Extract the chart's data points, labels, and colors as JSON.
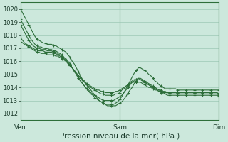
{
  "title": "Pression niveau de la mer( hPa )",
  "bg_color": "#cce8dc",
  "grid_color": "#9cc8b4",
  "line_color": "#2d6e3a",
  "ylim": [
    1011.5,
    1020.5
  ],
  "yticks": [
    1012,
    1013,
    1014,
    1015,
    1016,
    1017,
    1018,
    1019,
    1020
  ],
  "xlim": [
    0,
    96
  ],
  "xtick_positions": [
    0,
    48,
    96
  ],
  "xtick_labels": [
    "Ven",
    "Sam",
    "Dim"
  ],
  "vlines": [
    48,
    96
  ],
  "series": [
    [
      1020.0,
      1019.7,
      1019.4,
      1019.1,
      1018.8,
      1018.5,
      1018.2,
      1017.9,
      1017.7,
      1017.6,
      1017.5,
      1017.4,
      1017.4,
      1017.3,
      1017.3,
      1017.3,
      1017.2,
      1017.2,
      1017.1,
      1017.0,
      1016.9,
      1016.8,
      1016.7,
      1016.5,
      1016.3,
      1016.0,
      1015.8,
      1015.5,
      1015.2,
      1014.9,
      1014.6,
      1014.4,
      1014.2,
      1014.0,
      1013.8,
      1013.6,
      1013.4,
      1013.2,
      1013.0,
      1012.9,
      1012.8,
      1012.7,
      1012.7,
      1012.7,
      1012.7,
      1012.7,
      1012.8,
      1012.9,
      1013.1,
      1013.3,
      1013.6,
      1013.9,
      1014.2,
      1014.5,
      1014.8,
      1015.1,
      1015.3,
      1015.5,
      1015.5,
      1015.4,
      1015.3,
      1015.2,
      1015.0,
      1014.9,
      1014.7,
      1014.5,
      1014.4,
      1014.2,
      1014.1,
      1014.0,
      1013.9,
      1013.9,
      1013.9,
      1013.9,
      1013.9,
      1013.9,
      1013.8,
      1013.8,
      1013.8,
      1013.8,
      1013.8,
      1013.8,
      1013.8,
      1013.8,
      1013.8,
      1013.8,
      1013.8,
      1013.8,
      1013.8,
      1013.8,
      1013.8,
      1013.8,
      1013.8,
      1013.8,
      1013.8,
      1013.8,
      1013.8
    ],
    [
      1019.2,
      1018.9,
      1018.6,
      1018.3,
      1018.0,
      1017.7,
      1017.5,
      1017.3,
      1017.2,
      1017.1,
      1017.1,
      1017.0,
      1017.0,
      1017.0,
      1016.9,
      1016.9,
      1016.8,
      1016.8,
      1016.7,
      1016.6,
      1016.5,
      1016.3,
      1016.2,
      1016.0,
      1015.8,
      1015.5,
      1015.3,
      1015.0,
      1014.7,
      1014.5,
      1014.3,
      1014.1,
      1013.9,
      1013.7,
      1013.5,
      1013.4,
      1013.2,
      1013.1,
      1013.0,
      1012.9,
      1012.8,
      1012.7,
      1012.6,
      1012.6,
      1012.6,
      1012.6,
      1012.6,
      1012.7,
      1012.8,
      1012.9,
      1013.1,
      1013.3,
      1013.6,
      1013.8,
      1014.0,
      1014.3,
      1014.5,
      1014.6,
      1014.6,
      1014.5,
      1014.4,
      1014.3,
      1014.2,
      1014.1,
      1014.0,
      1013.9,
      1013.8,
      1013.7,
      1013.6,
      1013.5,
      1013.5,
      1013.4,
      1013.4,
      1013.4,
      1013.4,
      1013.4,
      1013.4,
      1013.4,
      1013.4,
      1013.4,
      1013.4,
      1013.4,
      1013.4,
      1013.4,
      1013.4,
      1013.4,
      1013.4,
      1013.4,
      1013.4,
      1013.4,
      1013.4,
      1013.4,
      1013.4,
      1013.4,
      1013.4,
      1013.4,
      1013.3
    ],
    [
      1018.8,
      1018.5,
      1018.2,
      1017.9,
      1017.6,
      1017.4,
      1017.2,
      1017.1,
      1017.0,
      1017.0,
      1016.9,
      1016.9,
      1016.9,
      1016.8,
      1016.8,
      1016.8,
      1016.7,
      1016.7,
      1016.6,
      1016.5,
      1016.4,
      1016.3,
      1016.1,
      1015.9,
      1015.7,
      1015.5,
      1015.2,
      1015.0,
      1014.7,
      1014.5,
      1014.3,
      1014.1,
      1013.9,
      1013.8,
      1013.6,
      1013.5,
      1013.4,
      1013.3,
      1013.2,
      1013.1,
      1013.0,
      1013.0,
      1013.0,
      1013.0,
      1013.0,
      1013.0,
      1013.1,
      1013.2,
      1013.3,
      1013.4,
      1013.6,
      1013.8,
      1014.0,
      1014.2,
      1014.4,
      1014.5,
      1014.6,
      1014.7,
      1014.7,
      1014.6,
      1014.5,
      1014.4,
      1014.3,
      1014.2,
      1014.1,
      1014.0,
      1013.9,
      1013.8,
      1013.7,
      1013.6,
      1013.5,
      1013.5,
      1013.5,
      1013.5,
      1013.5,
      1013.5,
      1013.5,
      1013.5,
      1013.5,
      1013.5,
      1013.5,
      1013.5,
      1013.5,
      1013.5,
      1013.5,
      1013.5,
      1013.5,
      1013.5,
      1013.5,
      1013.5,
      1013.5,
      1013.5,
      1013.5,
      1013.5,
      1013.5,
      1013.5,
      1013.4
    ],
    [
      1017.8,
      1017.6,
      1017.4,
      1017.3,
      1017.2,
      1017.1,
      1017.0,
      1016.9,
      1016.9,
      1016.8,
      1016.8,
      1016.8,
      1016.7,
      1016.7,
      1016.7,
      1016.7,
      1016.6,
      1016.6,
      1016.5,
      1016.4,
      1016.3,
      1016.2,
      1016.0,
      1015.9,
      1015.7,
      1015.5,
      1015.3,
      1015.1,
      1014.9,
      1014.7,
      1014.5,
      1014.4,
      1014.2,
      1014.1,
      1014.0,
      1013.9,
      1013.8,
      1013.7,
      1013.6,
      1013.5,
      1013.5,
      1013.4,
      1013.4,
      1013.4,
      1013.4,
      1013.4,
      1013.5,
      1013.5,
      1013.6,
      1013.8,
      1013.9,
      1014.1,
      1014.2,
      1014.4,
      1014.5,
      1014.6,
      1014.6,
      1014.7,
      1014.6,
      1014.5,
      1014.4,
      1014.3,
      1014.2,
      1014.1,
      1014.0,
      1014.0,
      1013.9,
      1013.8,
      1013.8,
      1013.7,
      1013.7,
      1013.6,
      1013.6,
      1013.6,
      1013.6,
      1013.6,
      1013.6,
      1013.6,
      1013.6,
      1013.6,
      1013.6,
      1013.6,
      1013.6,
      1013.6,
      1013.6,
      1013.6,
      1013.6,
      1013.6,
      1013.6,
      1013.6,
      1013.6,
      1013.6,
      1013.6,
      1013.6,
      1013.6,
      1013.6,
      1013.5
    ],
    [
      1017.5,
      1017.4,
      1017.3,
      1017.2,
      1017.1,
      1017.0,
      1016.9,
      1016.8,
      1016.7,
      1016.7,
      1016.6,
      1016.6,
      1016.6,
      1016.5,
      1016.5,
      1016.5,
      1016.5,
      1016.4,
      1016.4,
      1016.3,
      1016.2,
      1016.1,
      1016.0,
      1015.8,
      1015.7,
      1015.5,
      1015.3,
      1015.1,
      1014.9,
      1014.8,
      1014.6,
      1014.5,
      1014.3,
      1014.2,
      1014.1,
      1014.0,
      1013.9,
      1013.8,
      1013.8,
      1013.7,
      1013.7,
      1013.6,
      1013.6,
      1013.6,
      1013.6,
      1013.6,
      1013.7,
      1013.7,
      1013.8,
      1013.9,
      1014.0,
      1014.1,
      1014.2,
      1014.3,
      1014.4,
      1014.4,
      1014.4,
      1014.4,
      1014.4,
      1014.3,
      1014.2,
      1014.1,
      1014.0,
      1014.0,
      1013.9,
      1013.8,
      1013.8,
      1013.7,
      1013.7,
      1013.6,
      1013.6,
      1013.6,
      1013.6,
      1013.6,
      1013.6,
      1013.6,
      1013.6,
      1013.6,
      1013.6,
      1013.6,
      1013.6,
      1013.6,
      1013.6,
      1013.6,
      1013.6,
      1013.6,
      1013.6,
      1013.6,
      1013.6,
      1013.6,
      1013.6,
      1013.6,
      1013.6,
      1013.6,
      1013.6,
      1013.6,
      1013.5
    ]
  ],
  "marker": "+",
  "markersize": 3.5,
  "linewidth": 0.8,
  "marker_every": 4,
  "ylabel_fontsize": 6,
  "xlabel_fontsize": 7.5,
  "tick_fontsize": 6.5
}
